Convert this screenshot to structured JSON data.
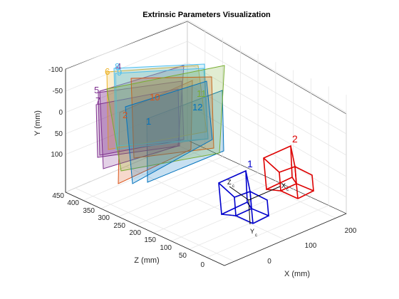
{
  "chart_data": {
    "type": "scatter",
    "title": "Extrinsic Parameters Visualization",
    "xlabel": "X (mm)",
    "ylabel": "Y (mm)",
    "zlabel": "Z (mm)",
    "xticks": [
      "0",
      "100",
      "200"
    ],
    "yticks": [
      "-100",
      "-50",
      "0",
      "50",
      "100"
    ],
    "zticks": [
      "0",
      "50",
      "100",
      "150",
      "200",
      "250",
      "300",
      "350",
      "400",
      "450"
    ],
    "grid": true,
    "colors": {
      "axis_text": "#262626",
      "grid": "#e6e6e6",
      "camera_1": "#0000cc",
      "camera_2": "#dd0000",
      "plane_palette": [
        "#0072bd",
        "#d95319",
        "#edb120",
        "#7e2f8e",
        "#77ac30",
        "#4dbeee",
        "#a2142f"
      ]
    },
    "cameras": [
      {
        "label": "1",
        "color": "#0000cc",
        "axis_labels": [
          "Z",
          "X",
          "Y"
        ]
      },
      {
        "label": "2",
        "color": "#dd0000"
      }
    ],
    "camera_axis_subscript": "c",
    "planes": [
      {
        "label": "1",
        "color": "#0072bd"
      },
      {
        "label": "2",
        "color": "#d95319"
      },
      {
        "label": "4",
        "color": "#7e2f8e"
      },
      {
        "label": "5",
        "color": "#7e2f8e"
      },
      {
        "label": "6",
        "color": "#edb120"
      },
      {
        "label": "7",
        "color": "#7e2f8e"
      },
      {
        "label": "8",
        "color": "#4dbeee"
      },
      {
        "label": "9",
        "color": "#4dbeee"
      },
      {
        "label": "10",
        "color": "#d95319"
      },
      {
        "label": "11",
        "color": "#77ac30"
      },
      {
        "label": "12",
        "color": "#0072bd"
      }
    ]
  }
}
